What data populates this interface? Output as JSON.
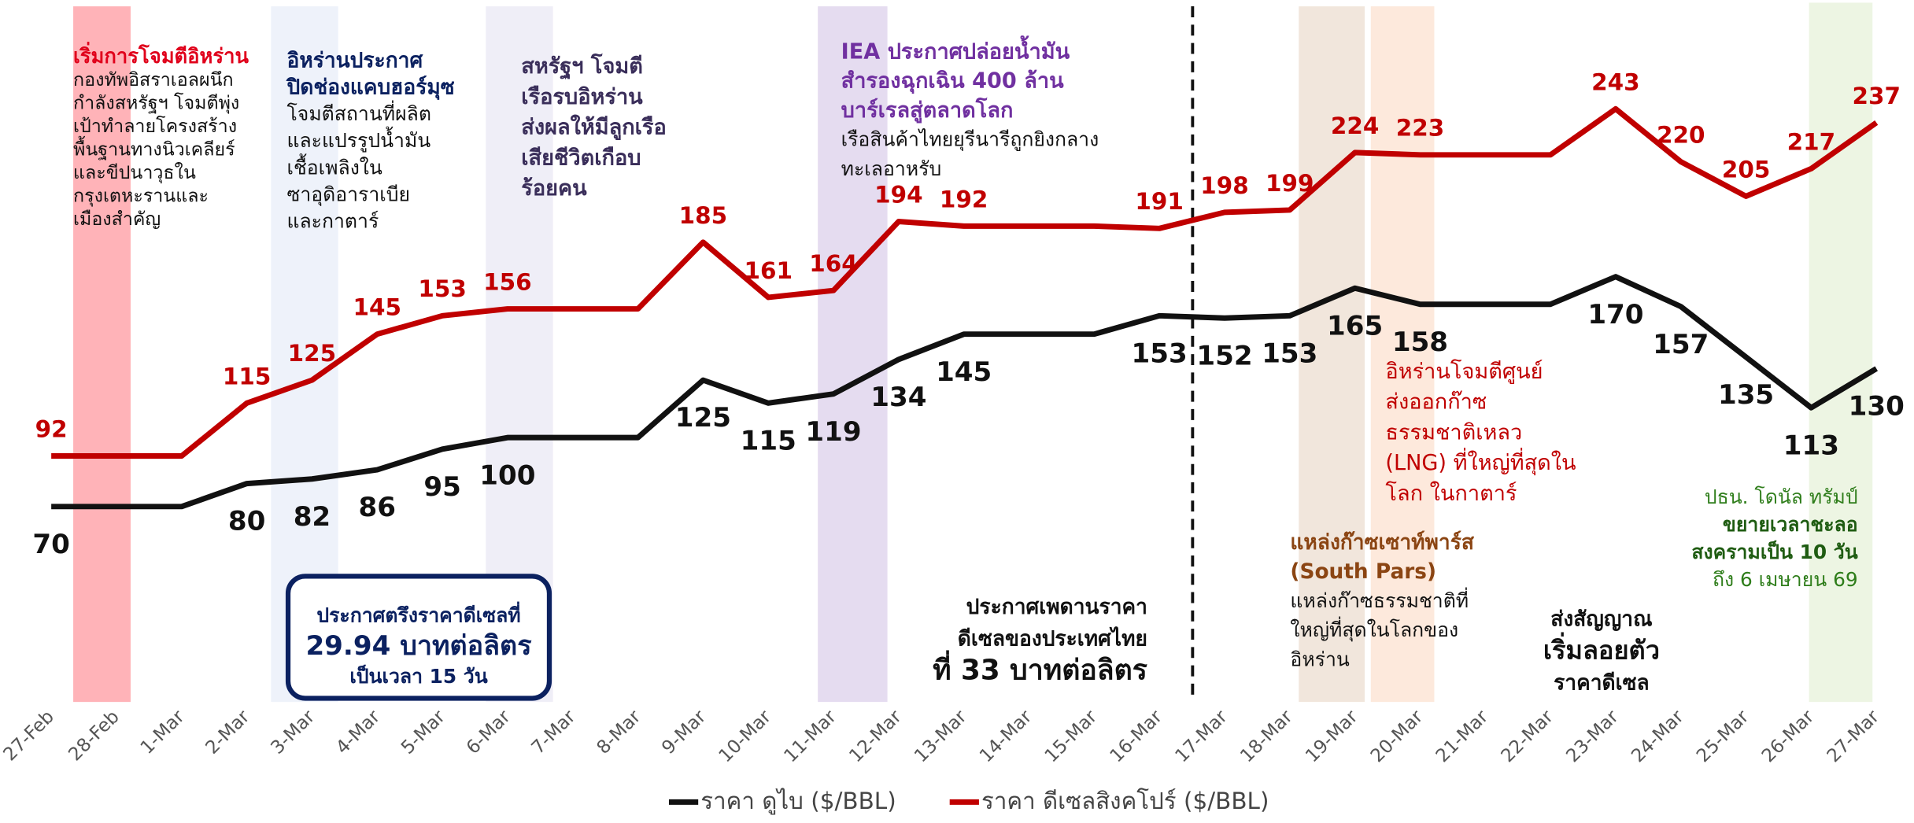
{
  "chart_data": {
    "type": "line",
    "categories": [
      "27-Feb",
      "28-Feb",
      "1-Mar",
      "2-Mar",
      "3-Mar",
      "4-Mar",
      "5-Mar",
      "6-Mar",
      "7-Mar",
      "8-Mar",
      "9-Mar",
      "10-Mar",
      "11-Mar",
      "12-Mar",
      "13-Mar",
      "14-Mar",
      "15-Mar",
      "16-Mar",
      "17-Mar",
      "18-Mar",
      "19-Mar",
      "20-Mar",
      "21-Mar",
      "22-Mar",
      "23-Mar",
      "24-Mar",
      "25-Mar",
      "26-Mar",
      "27-Mar"
    ],
    "ylim": [
      -15,
      260
    ],
    "legend": "bottom",
    "series": [
      {
        "name": "ราคา ดูไบ ($/BBL)",
        "color": "#111111",
        "values": [
          70,
          70,
          70,
          80,
          82,
          86,
          95,
          100,
          100,
          100,
          125,
          115,
          119,
          134,
          145,
          145,
          145,
          153,
          152,
          153,
          165,
          158,
          158,
          158,
          170,
          157,
          135,
          113,
          130
        ],
        "value_labels": [
          "70",
          null,
          null,
          "80",
          "82",
          "86",
          "95",
          "100",
          null,
          null,
          "125",
          "115",
          "119",
          "134",
          "145",
          null,
          null,
          "153",
          "152",
          "153",
          "165",
          "158",
          null,
          null,
          "170",
          "157",
          "135",
          "113",
          "130"
        ]
      },
      {
        "name": "ราคา ดีเซลสิงคโปร์ ($/BBL)",
        "color": "#c00000",
        "values": [
          92,
          92,
          92,
          115,
          125,
          145,
          153,
          156,
          156,
          156,
          185,
          161,
          164,
          194,
          192,
          192,
          192,
          191,
          198,
          199,
          224,
          223,
          223,
          223,
          243,
          220,
          205,
          217,
          237
        ],
        "value_labels": [
          "92",
          null,
          null,
          "115",
          "125",
          "145",
          "153",
          "156",
          null,
          null,
          "185",
          "161",
          "164",
          "194",
          "192",
          null,
          null,
          "191",
          "198",
          "199",
          "224",
          "223",
          null,
          null,
          "243",
          "220",
          "205",
          "217",
          "237"
        ]
      }
    ],
    "annotations": [
      {
        "title": [
          "เริ่มการโจมตีอิหร่าน"
        ],
        "body": [
          "กองทัพอิสราเอลผนึก",
          "กำลังสหรัฐฯ โจมตีพุ่ง",
          "เป้าทำลายโครงสร้าง",
          "พื้นฐานทางนิวเคลียร์",
          "และขีปนาวุธใน",
          "กรุงเตหะรานและ",
          "เมืองสำคัญ"
        ]
      },
      {
        "title": [
          "อิหร่านประกาศ",
          "ปิดช่องแคบฮอร์มุซ"
        ],
        "body": [
          "โจมตีสถานที่ผลิต",
          "และแปรรูปน้ำมัน",
          "เชื้อเพลิงใน",
          "ซาอุดิอาราเบีย",
          "และกาตาร์"
        ]
      },
      {
        "title": [
          "สหรัฐฯ โจมตี",
          "เรือรบอิหร่าน",
          "ส่งผลให้มีลูกเรือ",
          "เสียชีวิตเกือบ",
          "ร้อยคน"
        ]
      },
      {
        "title": [
          "IEA ประกาศปล่อยน้ำมัน",
          "สำรองฉุกเฉิน 400 ล้าน",
          "บาร์เรลสู่ตลาดโลก"
        ],
        "body": [
          "เรือสินค้าไทยยุรีนารีถูกยิงกลาง",
          "ทะเลอาหรับ"
        ]
      },
      {
        "title": [
          "ประกาศตรึงราคาดีเซลที่",
          "29.94 บาทต่อลิตร",
          "เป็นเวลา 15  วัน"
        ]
      },
      {
        "title": [
          "ประกาศเพดานราคา",
          "ดีเซลของประเทศไทย",
          "ที่ 33 บาทต่อลิตร"
        ]
      },
      {
        "body": [
          "อิหร่านโจมตีศูนย์",
          "ส่งออกก๊าซ",
          "ธรรมชาติเหลว",
          "(LNG) ที่ใหญ่ที่สุดใน",
          "โลก ในกาตาร์"
        ]
      },
      {
        "title": [
          "แหล่งก๊าซเซาท์พาร์ส",
          "(South Pars)"
        ],
        "body": [
          "แหล่งก๊าซธรรมชาติที่",
          "ใหญ่ที่สุดในโลกของ",
          "อิหร่าน"
        ]
      },
      {
        "title": [
          "ส่งสัญญาณ",
          "เริ่มลอยตัว",
          "ราคาดีเซล"
        ]
      },
      {
        "title": [
          "ปธน. โดนัล ทรัมป์",
          "ขยายเวลาชะลอ",
          "สงครามเป็น 10 วัน",
          "ถึง 6 เมษายน 69"
        ]
      }
    ]
  }
}
